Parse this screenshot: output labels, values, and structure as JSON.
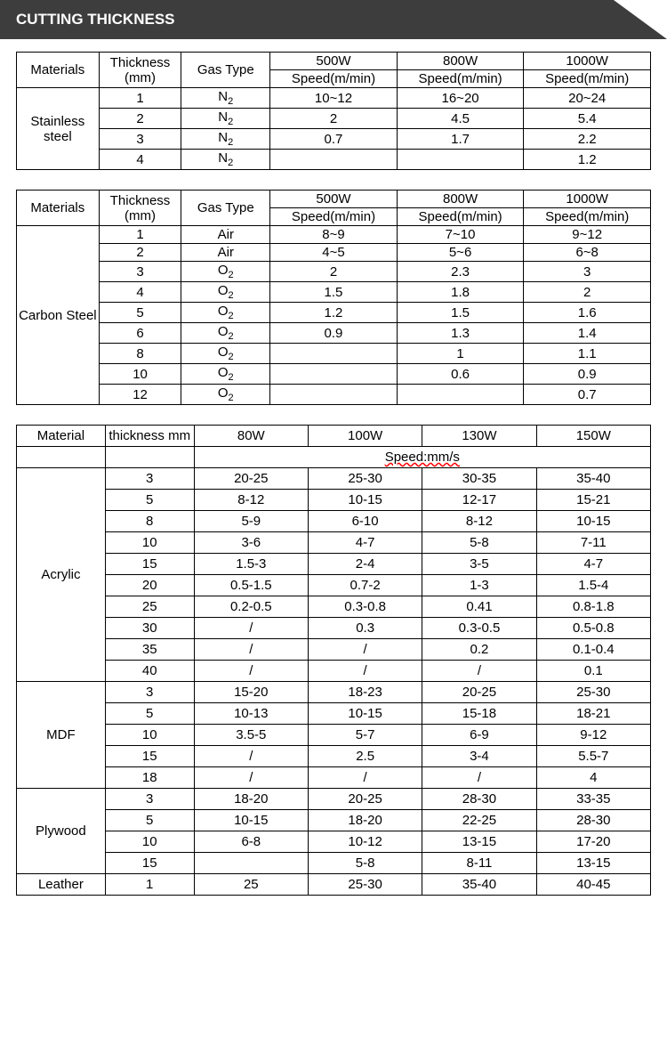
{
  "banner_title": "CUTTING THICKNESS",
  "table1": {
    "headers": {
      "materials": "Materials",
      "thickness": "Thickness (mm)",
      "gas": "Gas Type",
      "p1": "500W",
      "p2": "800W",
      "p3": "1000W",
      "s1": "Speed(m/min)",
      "s2": "Speed(m/min)",
      "s3": "Speed(m/min)"
    },
    "material": "Stainless steel",
    "rows": [
      {
        "t": "1",
        "gas": "N2",
        "s1": "10~12",
        "s2": "16~20",
        "s3": "20~24"
      },
      {
        "t": "2",
        "gas": "N2",
        "s1": "2",
        "s2": "4.5",
        "s3": "5.4"
      },
      {
        "t": "3",
        "gas": "N2",
        "s1": "0.7",
        "s2": "1.7",
        "s3": "2.2"
      },
      {
        "t": "4",
        "gas": "N2",
        "s1": "",
        "s2": "",
        "s3": "1.2"
      }
    ]
  },
  "table2": {
    "headers": {
      "materials": "Materials",
      "thickness": "Thickness (mm)",
      "gas": "Gas Type",
      "p1": "500W",
      "p2": "800W",
      "p3": "1000W",
      "s1": "Speed(m/min)",
      "s2": "Speed(m/min)",
      "s3": "Speed(m/min)"
    },
    "material": "Carbon Steel",
    "rows": [
      {
        "t": "1",
        "gas": "Air",
        "s1": "8~9",
        "s2": "7~10",
        "s3": "9~12"
      },
      {
        "t": "2",
        "gas": "Air",
        "s1": "4~5",
        "s2": "5~6",
        "s3": "6~8"
      },
      {
        "t": "3",
        "gas": "O2",
        "s1": "2",
        "s2": "2.3",
        "s3": "3"
      },
      {
        "t": "4",
        "gas": "O2",
        "s1": "1.5",
        "s2": "1.8",
        "s3": "2"
      },
      {
        "t": "5",
        "gas": "O2",
        "s1": "1.2",
        "s2": "1.5",
        "s3": "1.6"
      },
      {
        "t": "6",
        "gas": "O2",
        "s1": "0.9",
        "s2": "1.3",
        "s3": "1.4"
      },
      {
        "t": "8",
        "gas": "O2",
        "s1": "",
        "s2": "1",
        "s3": "1.1"
      },
      {
        "t": "10",
        "gas": "O2",
        "s1": "",
        "s2": "0.6",
        "s3": "0.9"
      },
      {
        "t": "12",
        "gas": "O2",
        "s1": "",
        "s2": "",
        "s3": "0.7"
      }
    ]
  },
  "table3": {
    "headers": {
      "material": "Material",
      "thickness": "thickness mm",
      "p1": "80W",
      "p2": "100W",
      "p3": "130W",
      "p4": "150W",
      "speed_unit": "Speed:mm/s"
    },
    "groups": [
      {
        "material": "Acrylic",
        "rows": [
          {
            "t": "3",
            "v": [
              "20-25",
              "25-30",
              "30-35",
              "35-40"
            ]
          },
          {
            "t": "5",
            "v": [
              "8-12",
              "10-15",
              "12-17",
              "15-21"
            ]
          },
          {
            "t": "8",
            "v": [
              "5-9",
              "6-10",
              "8-12",
              "10-15"
            ]
          },
          {
            "t": "10",
            "v": [
              "3-6",
              "4-7",
              "5-8",
              "7-11"
            ]
          },
          {
            "t": "15",
            "v": [
              "1.5-3",
              "2-4",
              "3-5",
              "4-7"
            ]
          },
          {
            "t": "20",
            "v": [
              "0.5-1.5",
              "0.7-2",
              "1-3",
              "1.5-4"
            ]
          },
          {
            "t": "25",
            "v": [
              "0.2-0.5",
              "0.3-0.8",
              "0.41",
              "0.8-1.8"
            ]
          },
          {
            "t": "30",
            "v": [
              "/",
              "0.3",
              "0.3-0.5",
              "0.5-0.8"
            ]
          },
          {
            "t": "35",
            "v": [
              "/",
              "/",
              "0.2",
              "0.1-0.4"
            ]
          },
          {
            "t": "40",
            "v": [
              "/",
              "/",
              "/",
              "0.1"
            ]
          }
        ]
      },
      {
        "material": "MDF",
        "rows": [
          {
            "t": "3",
            "v": [
              "15-20",
              "18-23",
              "20-25",
              "25-30"
            ]
          },
          {
            "t": "5",
            "v": [
              "10-13",
              "10-15",
              "15-18",
              "18-21"
            ]
          },
          {
            "t": "10",
            "v": [
              "3.5-5",
              "5-7",
              "6-9",
              "9-12"
            ]
          },
          {
            "t": "15",
            "v": [
              "/",
              "2.5",
              "3-4",
              "5.5-7"
            ]
          },
          {
            "t": "18",
            "v": [
              "/",
              "/",
              "/",
              "4"
            ]
          }
        ]
      },
      {
        "material": "Plywood",
        "rows": [
          {
            "t": "3",
            "v": [
              "18-20",
              "20-25",
              "28-30",
              "33-35"
            ]
          },
          {
            "t": "5",
            "v": [
              "10-15",
              "18-20",
              "22-25",
              "28-30"
            ]
          },
          {
            "t": "10",
            "v": [
              "6-8",
              "10-12",
              "13-15",
              "17-20"
            ]
          },
          {
            "t": "15",
            "v": [
              "",
              "5-8",
              "8-11",
              "13-15"
            ]
          }
        ]
      },
      {
        "material": "Leather",
        "rows": [
          {
            "t": "1",
            "v": [
              "25",
              "25-30",
              "35-40",
              "40-45"
            ]
          }
        ]
      }
    ]
  }
}
